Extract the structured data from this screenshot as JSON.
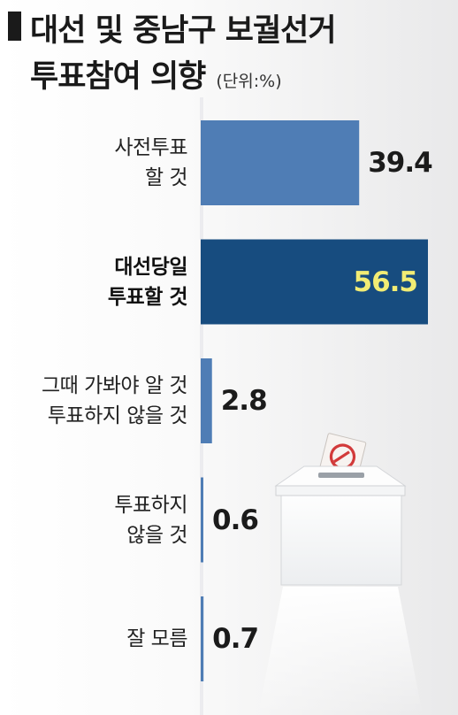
{
  "title": {
    "line1": "대선 및 중남구 보궐선거",
    "line2": "투표참여 의향",
    "unit": "(단위:%)"
  },
  "chart_data": {
    "type": "bar",
    "orientation": "horizontal",
    "title": "대선 및 중남구 보궐선거 투표참여 의향",
    "unit": "(단위:%)",
    "categories": [
      [
        "사전투표",
        "할 것"
      ],
      [
        "대선당일",
        "투표할 것"
      ],
      [
        "그때 가봐야 알 것",
        "투표하지 않을 것"
      ],
      [
        "투표하지",
        "않을 것"
      ],
      [
        "잘 모름"
      ]
    ],
    "values": [
      39.4,
      56.5,
      2.8,
      0.6,
      0.7
    ],
    "value_labels": [
      "39.4",
      "56.5",
      "2.8",
      "0.6",
      "0.7"
    ],
    "highlight_index": 1,
    "colors": {
      "bar": "#4f7db5",
      "bar_highlight": "#174c7f",
      "highlight_value_text": "#f2ec74"
    },
    "xlim": [
      0,
      56.5
    ],
    "grid": false,
    "legend": "none"
  },
  "illustration": {
    "icon": "ballot-box-icon"
  }
}
